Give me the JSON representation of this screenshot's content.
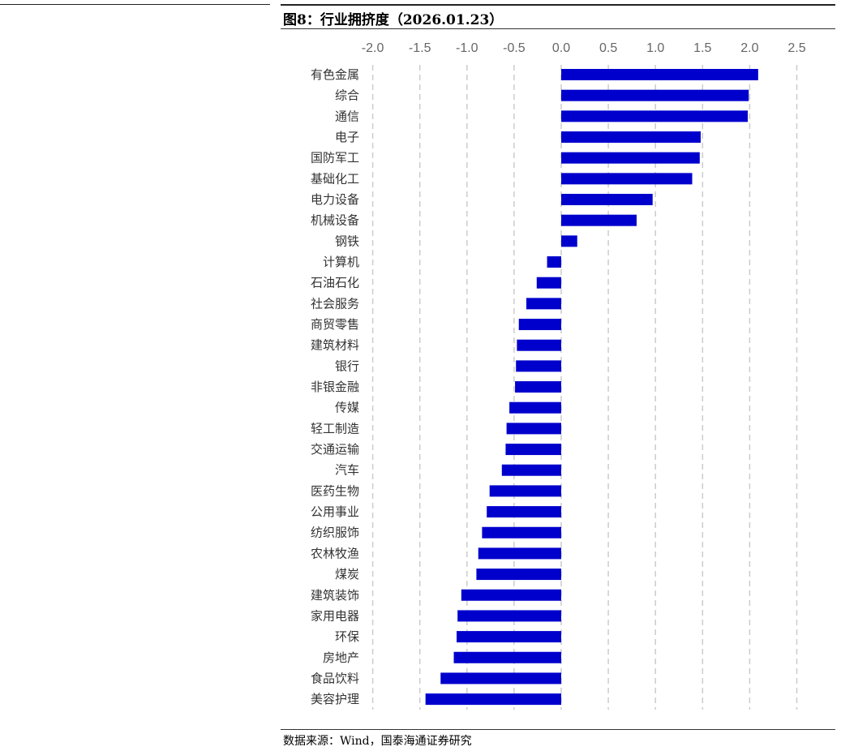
{
  "figure": {
    "title": "图8：行业拥挤度（2026.01.23）",
    "source": "数据来源：Wind，国泰海通证券研究"
  },
  "colors": {
    "bar": "#0000CD",
    "grid": "#cccccc"
  },
  "chart_data": {
    "type": "bar",
    "orientation": "horizontal",
    "title": "行业拥挤度（2026.01.23）",
    "xlabel": "",
    "ylabel": "",
    "xlim": [
      -2.0,
      2.5
    ],
    "xticks": [
      -2.0,
      -1.5,
      -1.0,
      -0.5,
      0.0,
      0.5,
      1.0,
      1.5,
      2.0,
      2.5
    ],
    "xtick_labels": [
      "-2.0",
      "-1.5",
      "-1.0",
      "-0.5",
      "0.0",
      "0.5",
      "1.0",
      "1.5",
      "2.0",
      "2.5"
    ],
    "grid": "vertical-dashed",
    "legend": "none",
    "categories": [
      "有色金属",
      "综合",
      "通信",
      "电子",
      "国防军工",
      "基础化工",
      "电力设备",
      "机械设备",
      "钢铁",
      "计算机",
      "石油石化",
      "社会服务",
      "商贸零售",
      "建筑材料",
      "银行",
      "非银金融",
      "传媒",
      "轻工制造",
      "交通运输",
      "汽车",
      "医药生物",
      "公用事业",
      "纺织服饰",
      "农林牧渔",
      "煤炭",
      "建筑装饰",
      "家用电器",
      "环保",
      "房地产",
      "食品饮料",
      "美容护理"
    ],
    "values": [
      2.09,
      1.99,
      1.98,
      1.48,
      1.47,
      1.39,
      0.97,
      0.8,
      0.17,
      -0.15,
      -0.26,
      -0.37,
      -0.45,
      -0.47,
      -0.48,
      -0.49,
      -0.55,
      -0.58,
      -0.59,
      -0.63,
      -0.76,
      -0.79,
      -0.84,
      -0.88,
      -0.9,
      -1.06,
      -1.1,
      -1.11,
      -1.14,
      -1.28,
      -1.44
    ]
  }
}
